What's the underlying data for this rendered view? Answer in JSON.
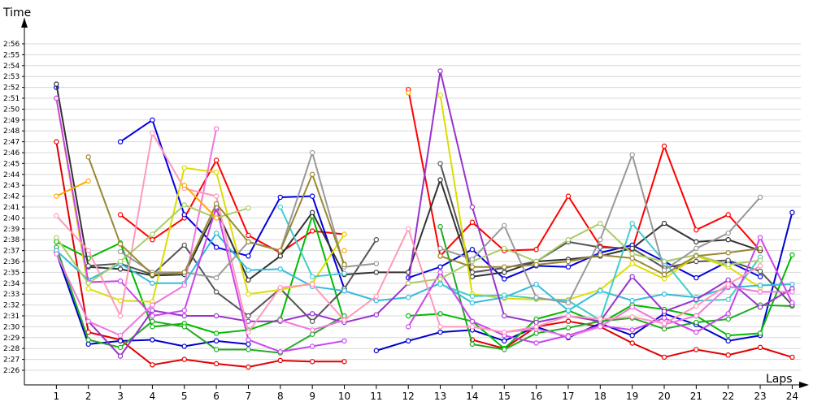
{
  "chart_data": {
    "type": "line",
    "title": "",
    "xlabel": "Laps",
    "ylabel": "Time",
    "x": [
      1,
      2,
      3,
      4,
      5,
      6,
      7,
      8,
      9,
      10,
      11,
      12,
      13,
      14,
      15,
      16,
      17,
      18,
      19,
      20,
      21,
      22,
      23,
      24
    ],
    "xlim": [
      0,
      24.5
    ],
    "ylim": [
      "2:25",
      "2:58"
    ],
    "yticks": [
      "2:26",
      "2:27",
      "2:28",
      "2:29",
      "2:30",
      "2:31",
      "2:32",
      "2:33",
      "2:34",
      "2:35",
      "2:36",
      "2:37",
      "2:38",
      "2:39",
      "2:40",
      "2:41",
      "2:42",
      "2:43",
      "2:44",
      "2:45",
      "2:46",
      "2:47",
      "2:48",
      "2:49",
      "2:50",
      "2:51",
      "2:52",
      "2:53",
      "2:54",
      "2:55",
      "2:56"
    ],
    "grid": true,
    "legend": "none",
    "series": [
      {
        "color": "#e00000",
        "values": [
          "2:47",
          "2:29.5",
          "2:28.8",
          "2:26.5",
          "2:27",
          "2:26.6",
          "2:26.3",
          "2:26.9",
          "2:26.8",
          "2:26.8",
          null,
          null,
          null,
          "2:28.8",
          "2:28",
          "2:30",
          "2:30.5",
          "2:30",
          "2:28.5",
          "2:27.2",
          "2:27.9",
          "2:27.4",
          "2:28.1",
          "2:27.2"
        ]
      },
      {
        "color": "#ff0000",
        "values": [
          "2:51",
          null,
          "2:40.3",
          "2:38",
          "2:40",
          "2:45.3",
          "2:38.4",
          "2:36.8",
          "2:38.8",
          "2:38.5",
          null,
          "2:51.8",
          "2:36.5",
          "2:39.6",
          "2:37",
          "2:37.1",
          "2:42",
          "2:37.4",
          "2:37.1",
          "2:46.6",
          "2:38.9",
          "2:40.3",
          "2:37",
          null
        ]
      },
      {
        "color": "#0000e0",
        "values": [
          "2:52",
          null,
          "2:47",
          "2:49",
          "2:40.3",
          "2:37.3",
          "2:36.5",
          "2:41.9",
          "2:42",
          "2:33.5",
          null,
          "2:34.5",
          "2:35.5",
          "2:37.1",
          "2:34.4",
          "2:35.6",
          "2:35.5",
          "2:36.8",
          "2:37.5",
          "2:36",
          "2:34.5",
          "2:36",
          "2:34.6",
          null
        ]
      },
      {
        "color": "#0000cc",
        "values": [
          "2:36.8",
          "2:28.4",
          "2:28.7",
          "2:28.8",
          "2:28.2",
          "2:28.7",
          "2:28.4",
          null,
          null,
          null,
          "2:27.8",
          "2:28.7",
          "2:29.5",
          "2:29.7",
          "2:28.7",
          "2:30",
          "2:29",
          "2:30.3",
          "2:29.2",
          "2:31.2",
          "2:30.2",
          "2:28.7",
          "2:29.2",
          "2:40.5"
        ]
      },
      {
        "color": "#00bb00",
        "values": [
          "2:37.8",
          "2:36.3",
          "2:37.7",
          "2:30",
          "2:30.3",
          "2:29.4",
          "2:29.7",
          "2:30.7",
          "2:40.2",
          "2:30.5",
          null,
          "2:31",
          "2:31.2",
          "2:30.5",
          "2:28",
          "2:30.7",
          "2:31.5",
          "2:30.3",
          "2:32",
          "2:31.6",
          "2:31",
          "2:29.2",
          "2:29.4",
          "2:36.6"
        ]
      },
      {
        "color": "#22aa22",
        "values": [
          "2:37.3",
          "2:28.8",
          "2:28.1",
          "2:30.5",
          "2:30",
          "2:27.9",
          "2:27.9",
          "2:27.6",
          "2:29.3",
          "2:31",
          null,
          null,
          "2:39.2",
          "2:28.4",
          "2:27.9",
          "2:29.4",
          "2:29.9",
          "2:30.5",
          "2:30.8",
          "2:29.8",
          "2:30.4",
          "2:30.7",
          "2:32",
          "2:31.9"
        ]
      },
      {
        "color": "#333333",
        "values": [
          "2:52.3",
          "2:35.5",
          "2:35.3",
          "2:34.7",
          "2:34.8",
          "2:40.8",
          "2:34.3",
          "2:36.5",
          "2:40.5",
          "2:34.8",
          "2:35",
          "2:35",
          "2:43.5",
          "2:34.6",
          "2:35",
          "2:36",
          "2:36.2",
          "2:36.5",
          "2:37.2",
          "2:39.5",
          "2:37.8",
          "2:38",
          "2:37",
          null
        ]
      },
      {
        "color": "#555555",
        "values": [
          null,
          "2:35.6",
          "2:35.8",
          "2:34.8",
          "2:37.5",
          "2:33.2",
          "2:31",
          "2:33.5",
          "2:30.5",
          "2:33.5",
          "2:38",
          null,
          "2:45",
          "2:35",
          "2:35.4",
          "2:36",
          "2:37.8",
          "2:37.3",
          "2:37.2",
          "2:35.4",
          "2:36",
          "2:36.1",
          "2:35.1",
          "2:32"
        ]
      },
      {
        "color": "#dddd00",
        "values": [
          "2:51",
          "2:33.5",
          "2:32.4",
          "2:32.3",
          "2:44.6",
          "2:44.2",
          "2:33",
          "2:33.4",
          "2:34",
          "2:38.5",
          null,
          null,
          "2:51.3",
          "2:33",
          "2:32.6",
          "2:32.5",
          "2:32.5",
          "2:33.4",
          "2:35.8",
          "2:34.4",
          "2:36.5",
          "2:35.5",
          "2:33.6",
          null
        ]
      },
      {
        "color": "#33bbdd",
        "values": [
          "2:37",
          "2:34.3",
          "2:35.8",
          "2:34",
          "2:34",
          "2:38.6",
          "2:35.2",
          "2:35.3",
          "2:33.7",
          "2:33.3",
          "2:32.4",
          "2:32.7",
          "2:34",
          "2:32.2",
          "2:32.7",
          "2:33.9",
          "2:31.5",
          "2:33.3",
          "2:32.4",
          "2:33",
          "2:32.7",
          "2:33.6",
          "2:33.8",
          "2:33.9"
        ]
      },
      {
        "color": "#44cccc",
        "values": [
          null,
          null,
          null,
          null,
          null,
          null,
          null,
          "2:41",
          "2:34.6",
          "2:34.9",
          null,
          null,
          "2:33.9",
          "2:32.8",
          "2:32.9",
          "2:32.6",
          "2:32.4",
          "2:30.6",
          "2:39.5",
          "2:36",
          "2:32.4",
          "2:32.5",
          "2:36.4",
          null
        ]
      },
      {
        "color": "#9933cc",
        "values": [
          null,
          "2:30.5",
          "2:27.3",
          "2:31.5",
          "2:31",
          "2:31",
          "2:30.5",
          "2:30.5",
          "2:31.2",
          "2:30.4",
          "2:31.1",
          "2:34",
          "2:53.5",
          "2:41",
          "2:31",
          "2:30.4",
          "2:31",
          "2:30.5",
          "2:34.6",
          "2:31.4",
          "2:32.5",
          "2:34.3",
          "2:31.8",
          "2:33.5"
        ]
      },
      {
        "color": "#cc44ee",
        "values": [
          "2:51",
          "2:34.1",
          "2:34.2",
          "2:31",
          "2:31.5",
          "2:41",
          "2:28.8",
          "2:27.7",
          "2:28.2",
          "2:28.7",
          null,
          "2:30",
          "2:35",
          "2:30.5",
          "2:29.2",
          "2:28.5",
          "2:29.2",
          "2:30.1",
          "2:29.7",
          "2:30.8",
          "2:29.5",
          "2:31.2",
          "2:38.2",
          "2:32.2"
        ]
      },
      {
        "color": "#ee77dd",
        "values": [
          "2:36.7",
          "2:30.5",
          "2:29.2",
          "2:32",
          "2:33.8",
          "2:48.2",
          null,
          "2:30.6",
          "2:29.7",
          "2:30.6",
          null,
          null,
          null,
          "2:30",
          "2:29.5",
          "2:29.8",
          "2:29.1",
          "2:30",
          "2:31.8",
          "2:30.2",
          "2:31",
          "2:33.7",
          "2:33.2",
          "2:33.2"
        ]
      },
      {
        "color": "#ff99bb",
        "values": [
          "2:40.2",
          "2:37",
          "2:31",
          "2:47.8",
          "2:42.7",
          "2:42",
          "2:29.5",
          "2:33.6",
          "2:33.9",
          "2:30.6",
          "2:32.8",
          "2:39",
          "2:30",
          "2:30",
          "2:29.5",
          "2:30",
          "2:31",
          "2:30.7",
          "2:30.9",
          "2:30.3",
          "2:31.9",
          "2:33.9",
          "2:35.6",
          null
        ]
      },
      {
        "color": "#aacc66",
        "values": [
          "2:38.2",
          "2:34",
          "2:36",
          "2:38.5",
          "2:41.2",
          "2:40",
          "2:40.9",
          null,
          null,
          "2:35.8",
          null,
          "2:34",
          "2:34.4",
          "2:36",
          "2:37.2",
          "2:36",
          "2:38",
          "2:39.5",
          "2:36.7",
          "2:36",
          "2:36.6",
          "2:35.7",
          "2:36.1",
          null
        ]
      },
      {
        "color": "#999999",
        "values": [
          null,
          null,
          "2:36.9",
          "2:35",
          "2:35",
          "2:34.5",
          "2:37.8",
          "2:37",
          "2:46",
          "2:35.5",
          "2:35.8",
          null,
          "2:37.2",
          "2:36.2",
          "2:39.3",
          "2:32.7",
          "2:32.2",
          "2:38",
          "2:45.8",
          "2:35.2",
          "2:37.2",
          "2:38.6",
          "2:41.9",
          null
        ]
      },
      {
        "color": "#998833",
        "values": [
          null,
          "2:45.6",
          "2:37.6",
          "2:34.8",
          "2:35",
          "2:41.3",
          "2:37.8",
          "2:37",
          "2:44",
          "2:35.7",
          null,
          null,
          "2:36.5",
          "2:35.5",
          "2:35.5",
          "2:35.7",
          "2:36",
          "2:36.6",
          "2:36.3",
          "2:34.8",
          "2:36.5",
          "2:36.8",
          "2:37.2",
          null
        ]
      },
      {
        "color": "#ffaa00",
        "values": [
          "2:42",
          "2:43.4",
          null,
          null,
          "2:43",
          "2:40",
          null,
          null,
          null,
          "2:37",
          null,
          "2:51.5",
          null,
          null,
          null,
          null,
          null,
          null,
          null,
          null,
          null,
          null,
          null,
          null
        ]
      }
    ]
  }
}
